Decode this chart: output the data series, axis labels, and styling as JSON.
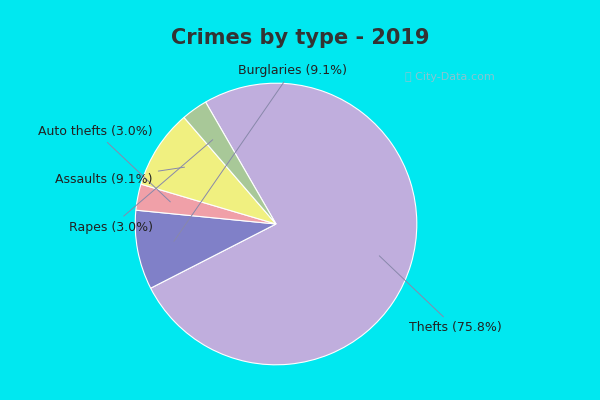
{
  "title": "Crimes by type - 2019",
  "slices": [
    {
      "label": "Thefts",
      "pct": 75.8,
      "color": "#c0aedd"
    },
    {
      "label": "Burglaries",
      "pct": 9.1,
      "color": "#8080c8"
    },
    {
      "label": "Auto thefts",
      "pct": 3.0,
      "color": "#f0a0a8"
    },
    {
      "label": "Assaults",
      "pct": 9.1,
      "color": "#f0f080"
    },
    {
      "label": "Rapes",
      "pct": 3.0,
      "color": "#a8c898"
    }
  ],
  "bg_color_outer": "#00e8f0",
  "bg_color_inner": "#d0ede0",
  "title_fontsize": 15,
  "label_fontsize": 9,
  "watermark": "ⓘ City-Data.com"
}
